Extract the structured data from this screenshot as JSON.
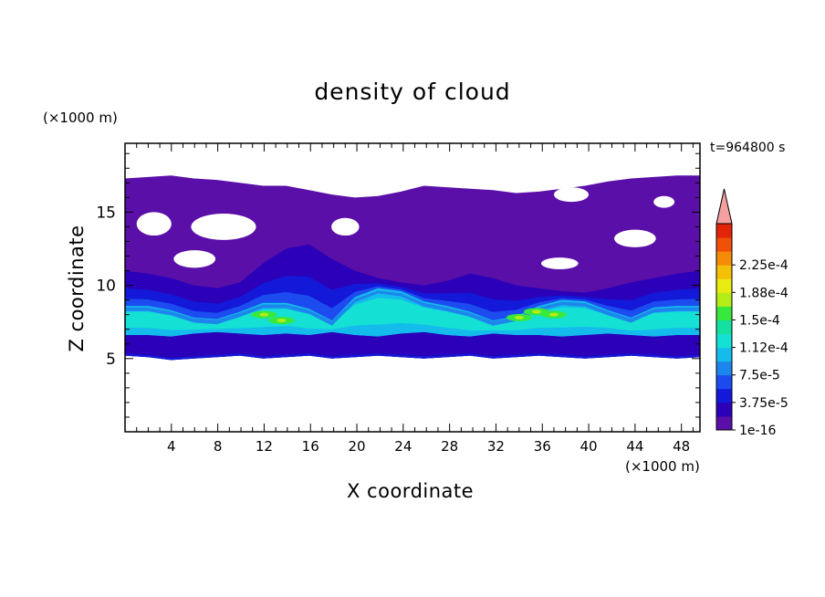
{
  "chart_data": {
    "type": "heatmap",
    "title": "density of cloud",
    "xlabel": "X coordinate",
    "ylabel": "Z coordinate",
    "x_unit": "(×1000 m)",
    "y_unit": "(×1000 m)",
    "timestamp": "t=964800 s",
    "xlim": [
      0,
      49.6
    ],
    "ylim": [
      0,
      19.7
    ],
    "x_ticks": [
      4,
      8,
      12,
      16,
      20,
      24,
      28,
      32,
      36,
      40,
      44,
      48
    ],
    "y_ticks": [
      5,
      10,
      15
    ],
    "colorbar": {
      "labels": [
        "1e-16",
        "3.75e-5",
        "7.5e-5",
        "1.12e-4",
        "1.5e-4",
        "1.88e-4",
        "2.25e-4"
      ],
      "colors": [
        "#5a0fa8",
        "#2b00b8",
        "#1418d8",
        "#1c4cf0",
        "#1c86ec",
        "#14bcec",
        "#14e0d4",
        "#14e0a0",
        "#38e83c",
        "#b4ec18",
        "#e8ec10",
        "#f4c008",
        "#f48c08",
        "#f05008",
        "#e42408"
      ],
      "extend_color": "#f4a0a0"
    },
    "cloud_bands": {
      "outer_top": [
        17.3,
        17.4,
        17.5,
        17.3,
        17.2,
        17.0,
        16.8,
        16.8,
        16.5,
        16.2,
        16.0,
        16.1,
        16.4,
        16.8,
        16.7,
        16.6,
        16.5,
        16.3,
        16.4,
        16.6,
        16.8,
        17.1,
        17.3,
        17.4,
        17.5,
        17.5
      ],
      "outer_bottom": [
        5.2,
        5.1,
        4.9,
        5.0,
        5.1,
        5.2,
        5.0,
        5.1,
        5.2,
        5.0,
        5.1,
        5.2,
        5.1,
        5.0,
        5.1,
        5.2,
        5.0,
        5.1,
        5.2,
        5.1,
        5.0,
        5.1,
        5.2,
        5.1,
        5.0,
        5.1
      ],
      "blue_top": [
        11.0,
        10.8,
        10.5,
        10.0,
        9.8,
        10.2,
        11.5,
        12.5,
        12.8,
        11.8,
        11.0,
        10.5,
        10.2,
        10.0,
        10.3,
        10.8,
        10.5,
        10.0,
        9.8,
        9.6,
        9.5,
        9.8,
        10.2,
        10.5,
        10.8,
        11.0
      ],
      "cyan_top": [
        8.6,
        8.6,
        8.3,
        7.8,
        7.7,
        8.2,
        8.8,
        8.8,
        8.4,
        7.6,
        9.2,
        9.8,
        9.6,
        8.9,
        8.6,
        8.2,
        7.6,
        7.9,
        8.6,
        9.0,
        8.9,
        8.3,
        7.8,
        8.5,
        8.6,
        8.6
      ],
      "cyan_bottom": [
        6.6,
        6.6,
        6.5,
        6.7,
        6.8,
        6.7,
        6.6,
        6.7,
        6.6,
        6.8,
        6.6,
        6.5,
        6.7,
        6.8,
        6.6,
        6.5,
        6.7,
        6.6,
        6.6,
        6.5,
        6.6,
        6.7,
        6.6,
        6.5,
        6.6,
        6.6
      ]
    }
  }
}
